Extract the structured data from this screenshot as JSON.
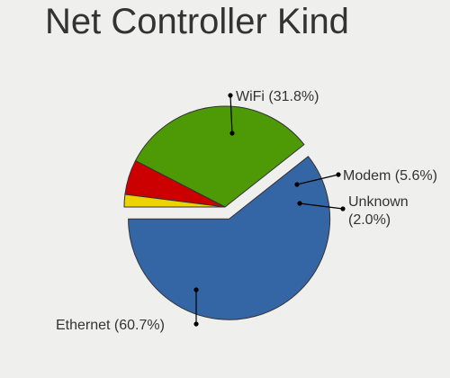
{
  "chart_data": {
    "type": "pie",
    "title": "Net Controller Kind",
    "slices": [
      {
        "label": "Ethernet",
        "value": 60.7,
        "display": "Ethernet (60.7%)",
        "color": "#3465a4",
        "exploded": true
      },
      {
        "label": "WiFi",
        "value": 31.8,
        "display": "WiFi (31.8%)",
        "color": "#4e9a06",
        "exploded": false
      },
      {
        "label": "Modem",
        "value": 5.6,
        "display": "Modem (5.6%)",
        "color": "#cc0000",
        "exploded": false
      },
      {
        "label": "Unknown",
        "value": 2.0,
        "display": [
          "Unknown",
          "(2.0%)"
        ],
        "color": "#edd400",
        "exploded": false
      }
    ]
  }
}
